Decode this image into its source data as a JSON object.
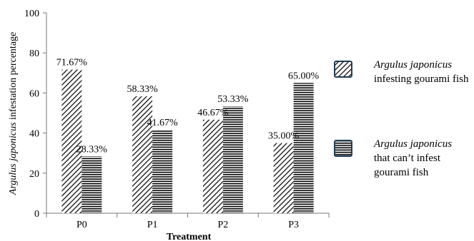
{
  "chart_data": {
    "type": "bar",
    "categories": [
      "P0",
      "P1",
      "P2",
      "P3"
    ],
    "series": [
      {
        "name": "Argulus japonicus infesting gourami fish",
        "values": [
          71.67,
          58.33,
          46.67,
          35.0
        ]
      },
      {
        "name": "Argulus japonicus that can’t infest gourami fish",
        "values": [
          28.33,
          41.67,
          53.33,
          65.0
        ]
      }
    ],
    "data_labels": [
      [
        "71.67%",
        "58.33%",
        "46.67%",
        "35.00%"
      ],
      [
        "28.33%",
        "41.67%",
        "53.33%",
        "65.00%"
      ]
    ],
    "xlabel": "Treatment",
    "ylabel_italic": "Argulus japonicus",
    "ylabel_rest": " infestation percentage",
    "ylim": [
      0,
      100
    ],
    "yticks": [
      0,
      20,
      40,
      60,
      80,
      100
    ],
    "grid": false,
    "legend_position": "right"
  },
  "legend": [
    {
      "italic": "Argulus japonicus",
      "rest": "infesting gourami fish"
    },
    {
      "italic": "Argulus japonicus",
      "rest": "that can’t infest gourami fish"
    }
  ],
  "colors": {
    "border": "#1f3f52",
    "ink": "#000000"
  }
}
